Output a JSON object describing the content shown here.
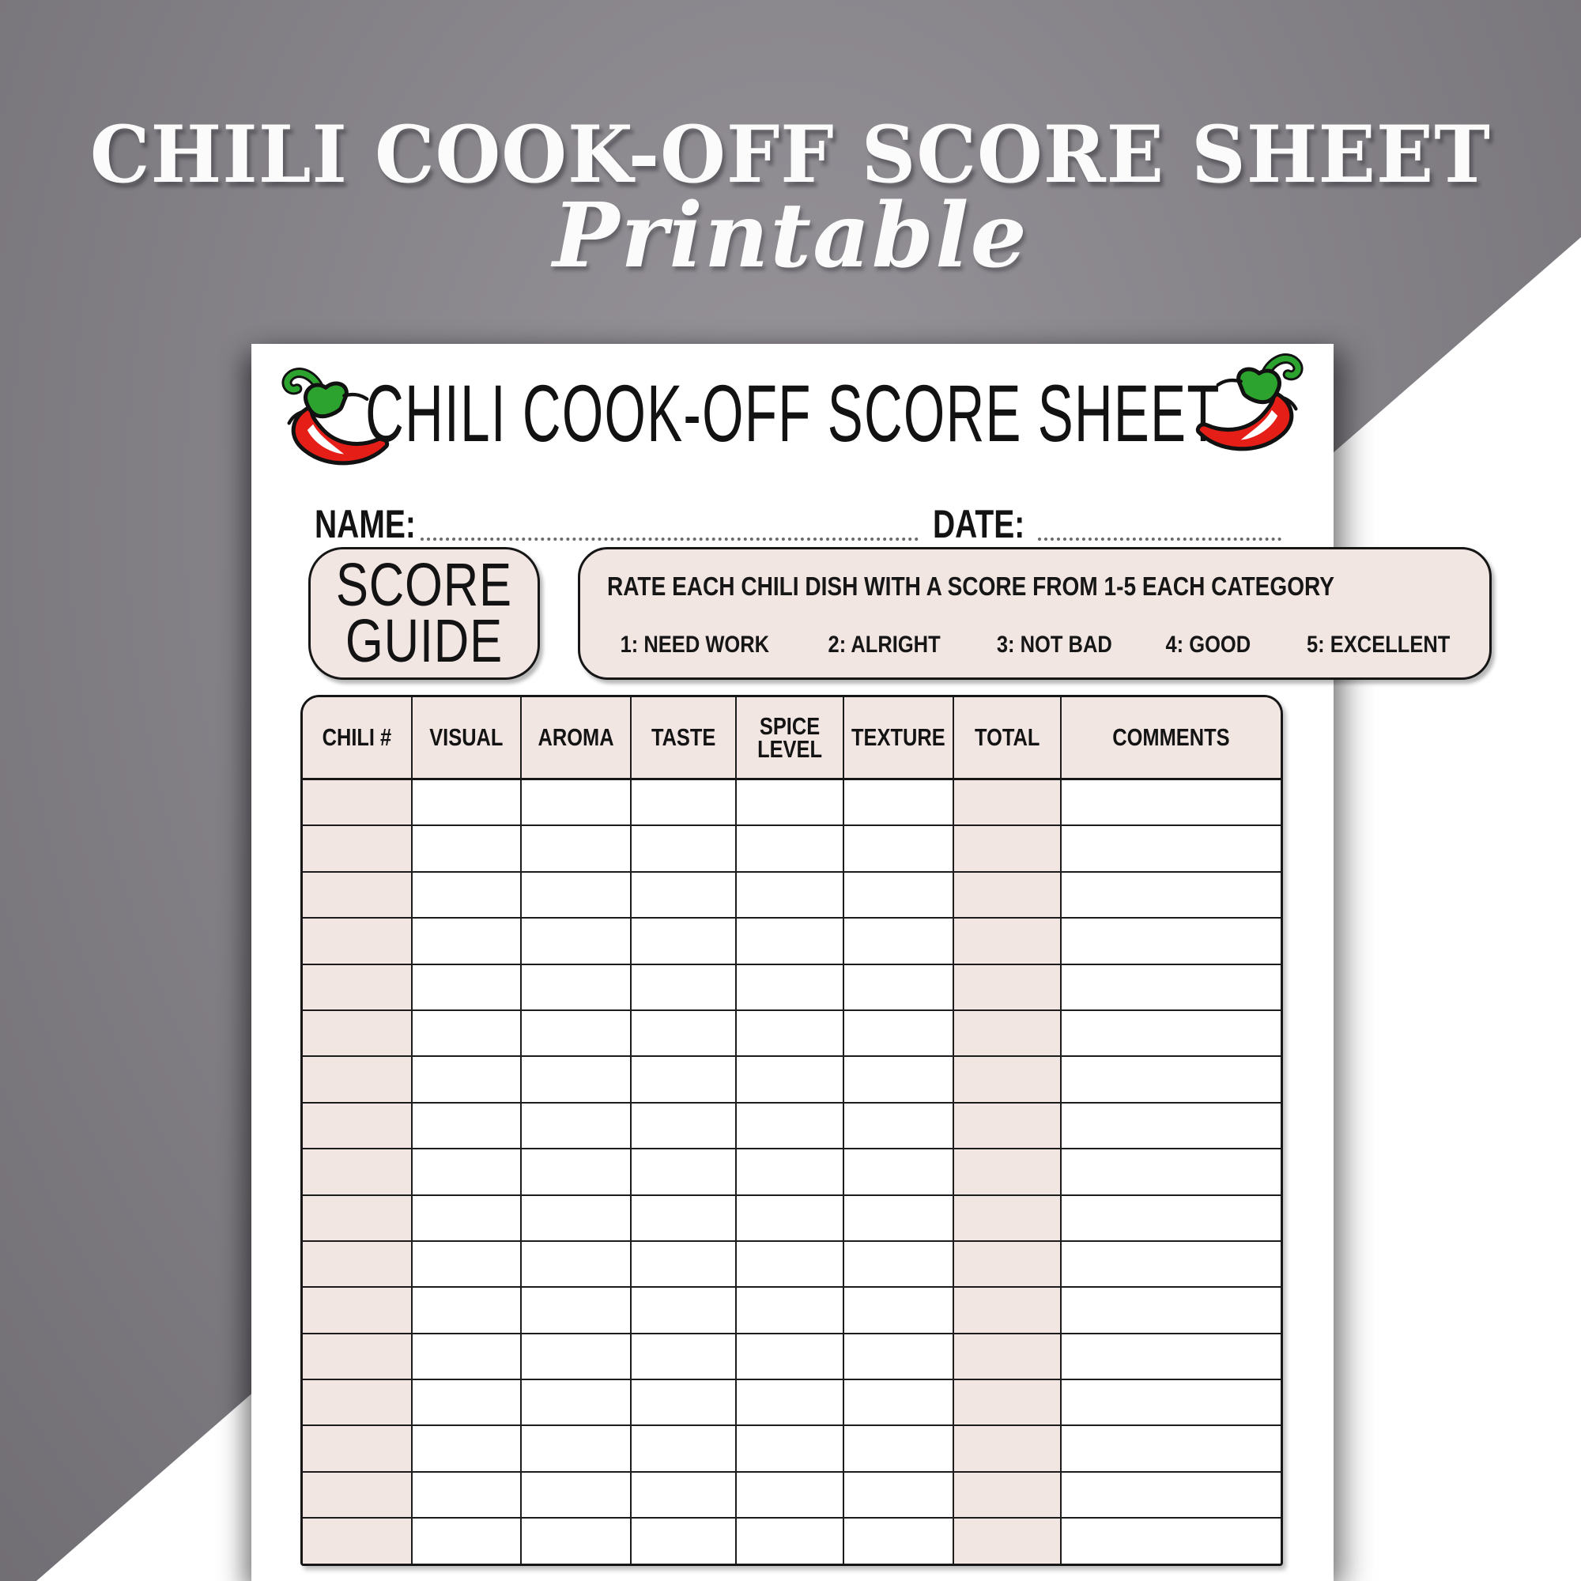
{
  "banner": {
    "title": "CHILI COOK-OFF SCORE SHEET",
    "subtitle": "Printable"
  },
  "sheet": {
    "title": "CHILI COOK-OFF SCORE SHEET",
    "name_label": "NAME:",
    "date_label": "DATE:",
    "score_guide": {
      "line1": "SCORE",
      "line2": "GUIDE"
    },
    "instructions": {
      "heading": "RATE EACH CHILI DISH WITH A SCORE FROM 1-5 EACH CATEGORY",
      "scale": [
        "1: NEED WORK",
        "2: ALRIGHT",
        "3: NOT BAD",
        "4: GOOD",
        "5: EXCELLENT"
      ]
    },
    "table": {
      "columns": [
        "CHILI #",
        "VISUAL",
        "AROMA",
        "TASTE",
        "SPICE LEVEL",
        "TEXTURE",
        "TOTAL",
        "COMMENTS"
      ],
      "rows": 17,
      "highlighted_columns": [
        "CHILI #",
        "TOTAL"
      ]
    }
  },
  "icons": {
    "left": "chili-pepper-icon",
    "right": "chili-pepper-icon"
  },
  "colors": {
    "pepper_red": "#e51f17",
    "pepper_green": "#2ca32f",
    "highlight_pink": "#f2e6e3",
    "backdrop_gray": "#8a878d",
    "ink_black": "#161616"
  }
}
